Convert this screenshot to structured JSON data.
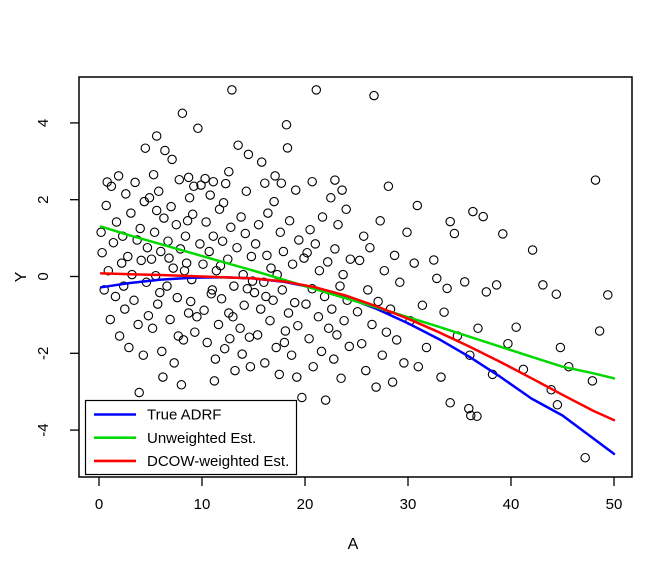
{
  "chart_data": {
    "type": "scatter",
    "title": "",
    "xlabel": "A",
    "ylabel": "Y",
    "xlim": [
      -1.9,
      51.8
    ],
    "ylim": [
      -5.2,
      5.2
    ],
    "x_ticks": [
      0,
      10,
      20,
      30,
      40,
      50
    ],
    "y_ticks": [
      -4,
      -2,
      0,
      2,
      4
    ],
    "grid": false,
    "background": "#ffffff",
    "point_style": {
      "shape": "open-circle",
      "color": "#000000"
    },
    "legend": {
      "position": "bottomleft",
      "entries": [
        {
          "label": "True ADRF",
          "color": "#0000FF"
        },
        {
          "label": "Unweighted Est.",
          "color": "#00D800"
        },
        {
          "label": "DCOW-weighted Est.",
          "color": "#FF0000"
        }
      ]
    },
    "series": [
      {
        "id": "true-adrf",
        "name": "True ADRF",
        "color": "#0000FF",
        "x": [
          0.2,
          3,
          6,
          9,
          12,
          15,
          18,
          21,
          24,
          27,
          30,
          33,
          36,
          39,
          42,
          45,
          48,
          50
        ],
        "y": [
          -0.28,
          -0.17,
          -0.08,
          -0.03,
          -0.02,
          -0.05,
          -0.14,
          -0.3,
          -0.54,
          -0.85,
          -1.22,
          -1.63,
          -2.1,
          -2.62,
          -3.18,
          -3.62,
          -4.22,
          -4.62
        ]
      },
      {
        "id": "unweighted-est",
        "name": "Unweighted Est.",
        "color": "#00D800",
        "x": [
          0.2,
          3,
          6,
          9,
          12,
          15,
          18,
          21,
          24,
          27,
          30,
          33,
          36,
          39,
          42,
          45,
          48,
          50
        ],
        "y": [
          1.3,
          1.07,
          0.84,
          0.61,
          0.38,
          0.15,
          -0.09,
          -0.33,
          -0.57,
          -0.81,
          -1.06,
          -1.31,
          -1.57,
          -1.83,
          -2.09,
          -2.35,
          -2.52,
          -2.65
        ]
      },
      {
        "id": "dcow-weighted-est",
        "name": "DCOW-weighted Est.",
        "color": "#FF0000",
        "x": [
          0.2,
          3,
          6,
          9,
          12,
          15,
          18,
          21,
          24,
          27,
          30,
          33,
          36,
          39,
          42,
          45,
          48,
          50
        ],
        "y": [
          0.08,
          0.06,
          0.04,
          0.01,
          -0.02,
          -0.05,
          -0.13,
          -0.28,
          -0.5,
          -0.78,
          -1.1,
          -1.45,
          -1.83,
          -2.23,
          -2.65,
          -3.08,
          -3.5,
          -3.74
        ]
      }
    ],
    "points": [
      [
        0.2,
        1.15
      ],
      [
        0.3,
        0.62
      ],
      [
        0.5,
        -0.35
      ],
      [
        0.7,
        1.85
      ],
      [
        0.8,
        2.46
      ],
      [
        0.9,
        0.15
      ],
      [
        1.1,
        -1.12
      ],
      [
        1.2,
        2.35
      ],
      [
        1.4,
        0.88
      ],
      [
        1.6,
        -0.52
      ],
      [
        1.7,
        1.42
      ],
      [
        1.9,
        2.62
      ],
      [
        2.0,
        -1.55
      ],
      [
        2.2,
        0.35
      ],
      [
        2.3,
        1.05
      ],
      [
        2.4,
        -0.25
      ],
      [
        2.5,
        -0.85
      ],
      [
        2.6,
        2.15
      ],
      [
        2.8,
        0.52
      ],
      [
        2.9,
        -1.85
      ],
      [
        3.1,
        1.65
      ],
      [
        3.2,
        0.05
      ],
      [
        3.4,
        -0.62
      ],
      [
        3.5,
        2.45
      ],
      [
        3.7,
        0.95
      ],
      [
        3.8,
        -1.25
      ],
      [
        3.9,
        -3.02
      ],
      [
        4.0,
        1.25
      ],
      [
        4.1,
        0.42
      ],
      [
        4.3,
        -2.05
      ],
      [
        4.4,
        1.95
      ],
      [
        4.5,
        3.34
      ],
      [
        4.6,
        -0.15
      ],
      [
        4.7,
        0.75
      ],
      [
        4.8,
        -1.02
      ],
      [
        4.9,
        2.05
      ],
      [
        5.1,
        0.45
      ],
      [
        5.2,
        -1.35
      ],
      [
        5.3,
        2.65
      ],
      [
        5.4,
        1.15
      ],
      [
        5.5,
        0.02
      ],
      [
        5.6,
        3.66
      ],
      [
        5.6,
        1.72
      ],
      [
        5.7,
        -0.72
      ],
      [
        5.8,
        2.22
      ],
      [
        5.9,
        -0.42
      ],
      [
        6.0,
        0.65
      ],
      [
        6.1,
        -1.95
      ],
      [
        6.2,
        -2.62
      ],
      [
        6.3,
        1.52
      ],
      [
        6.4,
        3.28
      ],
      [
        6.6,
        -0.25
      ],
      [
        6.7,
        0.92
      ],
      [
        6.8,
        0.48
      ],
      [
        6.9,
        -1.12
      ],
      [
        7.0,
        1.82
      ],
      [
        7.1,
        3.05
      ],
      [
        7.2,
        0.22
      ],
      [
        7.3,
        -2.25
      ],
      [
        7.5,
        1.35
      ],
      [
        7.6,
        -0.55
      ],
      [
        7.7,
        -1.55
      ],
      [
        7.8,
        2.52
      ],
      [
        7.9,
        0.72
      ],
      [
        8.0,
        -2.82
      ],
      [
        8.1,
        4.25
      ],
      [
        8.2,
        -1.65
      ],
      [
        8.3,
        0.15
      ],
      [
        8.4,
        1.05
      ],
      [
        8.5,
        0.35
      ],
      [
        8.6,
        1.45
      ],
      [
        8.7,
        2.58
      ],
      [
        8.7,
        -0.95
      ],
      [
        8.8,
        2.05
      ],
      [
        8.9,
        -0.65
      ],
      [
        9.0,
        -0.08
      ],
      [
        9.1,
        1.62
      ],
      [
        9.2,
        2.35
      ],
      [
        9.3,
        -1.45
      ],
      [
        9.5,
        -1.05
      ],
      [
        9.6,
        3.86
      ],
      [
        9.8,
        0.85
      ],
      [
        9.9,
        2.38
      ],
      [
        10.1,
        0.32
      ],
      [
        10.2,
        -0.88
      ],
      [
        10.3,
        2.55
      ],
      [
        10.4,
        1.42
      ],
      [
        10.5,
        -1.72
      ],
      [
        10.7,
        0.65
      ],
      [
        10.8,
        2.12
      ],
      [
        10.9,
        -0.45
      ],
      [
        11.0,
        -0.35
      ],
      [
        11.1,
        2.47
      ],
      [
        11.1,
        1.05
      ],
      [
        11.2,
        -2.72
      ],
      [
        11.3,
        -2.15
      ],
      [
        11.4,
        0.15
      ],
      [
        11.6,
        -1.25
      ],
      [
        11.7,
        1.75
      ],
      [
        11.8,
        0.28
      ],
      [
        11.9,
        -0.58
      ],
      [
        12.0,
        0.92
      ],
      [
        12.1,
        1.92
      ],
      [
        12.2,
        -1.88
      ],
      [
        12.3,
        2.42
      ],
      [
        12.5,
        0.45
      ],
      [
        12.6,
        2.73
      ],
      [
        12.6,
        -0.95
      ],
      [
        12.7,
        -1.62
      ],
      [
        12.8,
        1.28
      ],
      [
        12.9,
        4.86
      ],
      [
        13.0,
        -1.05
      ],
      [
        13.1,
        -0.25
      ],
      [
        13.2,
        -2.45
      ],
      [
        13.4,
        0.75
      ],
      [
        13.5,
        3.42
      ],
      [
        13.7,
        -1.35
      ],
      [
        13.8,
        1.55
      ],
      [
        13.9,
        -2.02
      ],
      [
        14.0,
        0.05
      ],
      [
        14.1,
        -0.75
      ],
      [
        14.2,
        1.12
      ],
      [
        14.3,
        2.22
      ],
      [
        14.4,
        -0.32
      ],
      [
        14.5,
        3.18
      ],
      [
        14.6,
        -1.58
      ],
      [
        14.7,
        -2.35
      ],
      [
        14.8,
        0.52
      ],
      [
        14.9,
        -0.12
      ],
      [
        15.1,
        -0.42
      ],
      [
        15.2,
        0.85
      ],
      [
        15.4,
        -1.52
      ],
      [
        15.5,
        1.35
      ],
      [
        15.7,
        -0.85
      ],
      [
        15.8,
        2.98
      ],
      [
        16.0,
        -0.15
      ],
      [
        16.1,
        2.43
      ],
      [
        16.1,
        -2.25
      ],
      [
        16.2,
        -0.52
      ],
      [
        16.3,
        0.55
      ],
      [
        16.4,
        1.65
      ],
      [
        16.6,
        -1.15
      ],
      [
        16.7,
        0.22
      ],
      [
        16.9,
        -0.62
      ],
      [
        17.0,
        1.95
      ],
      [
        17.1,
        2.62
      ],
      [
        17.2,
        -1.85
      ],
      [
        17.3,
        0.05
      ],
      [
        17.4,
        -3.72
      ],
      [
        17.5,
        -2.55
      ],
      [
        17.6,
        1.15
      ],
      [
        17.7,
        2.43
      ],
      [
        17.8,
        -0.35
      ],
      [
        17.9,
        0.65
      ],
      [
        18.0,
        -1.72
      ],
      [
        18.1,
        -1.42
      ],
      [
        18.2,
        3.95
      ],
      [
        18.3,
        3.35
      ],
      [
        18.4,
        -0.95
      ],
      [
        18.5,
        1.45
      ],
      [
        18.7,
        -2.05
      ],
      [
        18.8,
        0.32
      ],
      [
        19.0,
        -0.68
      ],
      [
        19.1,
        2.25
      ],
      [
        19.2,
        -2.62
      ],
      [
        19.3,
        -1.28
      ],
      [
        19.4,
        0.95
      ],
      [
        19.7,
        -3.15
      ],
      [
        19.9,
        0.48
      ],
      [
        20.1,
        -0.72
      ],
      [
        20.2,
        0.62
      ],
      [
        20.4,
        -1.62
      ],
      [
        20.5,
        1.22
      ],
      [
        20.7,
        2.47
      ],
      [
        20.7,
        -0.32
      ],
      [
        20.8,
        -2.35
      ],
      [
        21.0,
        0.85
      ],
      [
        21.1,
        4.86
      ],
      [
        21.3,
        -1.05
      ],
      [
        21.4,
        0.15
      ],
      [
        21.6,
        -1.95
      ],
      [
        21.7,
        1.55
      ],
      [
        21.9,
        -0.52
      ],
      [
        22.0,
        -3.22
      ],
      [
        22.2,
        0.38
      ],
      [
        22.3,
        -1.35
      ],
      [
        22.5,
        2.05
      ],
      [
        22.6,
        -0.85
      ],
      [
        22.8,
        -2.15
      ],
      [
        22.9,
        2.51
      ],
      [
        22.9,
        0.72
      ],
      [
        23.1,
        -1.52
      ],
      [
        23.2,
        1.35
      ],
      [
        23.4,
        -0.25
      ],
      [
        23.5,
        -2.65
      ],
      [
        23.6,
        2.25
      ],
      [
        23.7,
        0.05
      ],
      [
        23.8,
        -1.15
      ],
      [
        24.0,
        1.75
      ],
      [
        24.1,
        -0.62
      ],
      [
        24.3,
        -1.82
      ],
      [
        24.4,
        0.45
      ],
      [
        25.1,
        -0.92
      ],
      [
        25.3,
        0.42
      ],
      [
        25.5,
        -1.75
      ],
      [
        25.7,
        1.05
      ],
      [
        25.9,
        -2.45
      ],
      [
        26.1,
        -0.35
      ],
      [
        26.3,
        0.75
      ],
      [
        26.5,
        -1.25
      ],
      [
        26.7,
        4.71
      ],
      [
        26.9,
        -2.88
      ],
      [
        27.1,
        -0.65
      ],
      [
        27.3,
        1.45
      ],
      [
        27.5,
        -2.05
      ],
      [
        27.7,
        0.15
      ],
      [
        27.9,
        -1.45
      ],
      [
        28.1,
        2.35
      ],
      [
        28.3,
        -0.85
      ],
      [
        28.5,
        -2.75
      ],
      [
        28.7,
        0.55
      ],
      [
        28.9,
        -1.65
      ],
      [
        29.2,
        -0.15
      ],
      [
        29.6,
        -2.25
      ],
      [
        29.9,
        1.15
      ],
      [
        30.2,
        -1.15
      ],
      [
        30.6,
        0.35
      ],
      [
        30.9,
        1.85
      ],
      [
        31.0,
        -2.35
      ],
      [
        31.4,
        -0.75
      ],
      [
        31.8,
        -1.85
      ],
      [
        32.5,
        0.43
      ],
      [
        32.8,
        -0.05
      ],
      [
        33.2,
        -2.62
      ],
      [
        33.5,
        -0.93
      ],
      [
        33.8,
        -0.31
      ],
      [
        34.1,
        1.43
      ],
      [
        34.1,
        -3.29
      ],
      [
        34.5,
        1.12
      ],
      [
        34.8,
        -1.55
      ],
      [
        35.5,
        -0.14
      ],
      [
        35.9,
        -3.44
      ],
      [
        36.0,
        -2.05
      ],
      [
        36.1,
        -3.62
      ],
      [
        36.3,
        1.69
      ],
      [
        36.7,
        -3.64
      ],
      [
        36.8,
        -1.35
      ],
      [
        37.3,
        1.56
      ],
      [
        37.6,
        -0.4
      ],
      [
        38.2,
        -2.55
      ],
      [
        38.6,
        -0.22
      ],
      [
        39.2,
        1.11
      ],
      [
        39.7,
        -1.75
      ],
      [
        40.5,
        -1.32
      ],
      [
        41.2,
        -2.42
      ],
      [
        42.1,
        0.69
      ],
      [
        43.1,
        -0.22
      ],
      [
        43.9,
        -2.95
      ],
      [
        44.4,
        -0.46
      ],
      [
        44.5,
        -3.34
      ],
      [
        44.8,
        -1.85
      ],
      [
        45.6,
        -2.35
      ],
      [
        47.2,
        -4.72
      ],
      [
        47.9,
        -2.72
      ],
      [
        48.2,
        2.51
      ],
      [
        48.6,
        -1.42
      ],
      [
        49.4,
        -0.48
      ]
    ]
  }
}
